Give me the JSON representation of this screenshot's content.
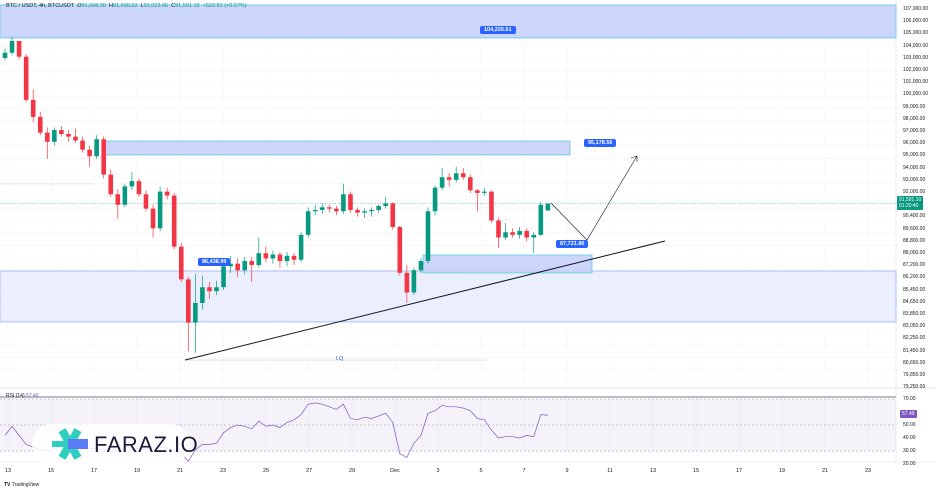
{
  "header": {
    "symbol": "BTC / USDT, 4h, BTCUSDT",
    "open_label": "O",
    "open": "91,068.30",
    "high_label": "H",
    "high": "91,600.53",
    "low_label": "L",
    "low": "91,023.06",
    "close_label": "C",
    "close": "91,591.10",
    "change": "+522.81 (+0.57%)"
  },
  "price_tag": {
    "price": "91,591.10",
    "countdown": "01:20:40"
  },
  "rsi_tag": "57.49",
  "rsi_title": {
    "name": "RSI (14)",
    "value": "57.49"
  },
  "callouts": {
    "top": "104,226.61",
    "mid": "95,178.56",
    "left": "86,438.99",
    "right": "87,721.86"
  },
  "lq_label": "LQ",
  "logo": {
    "text": "FARAZ.IO"
  },
  "footer": {
    "brand": "TradingView"
  },
  "colors": {
    "up": "#089981",
    "down": "#f23645",
    "zone": "#c7d2fb",
    "zone_border": "#5ccbe4",
    "rsi": "#7e57c2",
    "callout": "#2962ff"
  },
  "chart_data": {
    "type": "candlestick",
    "interval": "4h",
    "price_axis_labels": [
      "107,000.00",
      "106,000.00",
      "105,000.00",
      "104,000.00",
      "103,000.00",
      "102,000.00",
      "101,000.00",
      "100,000.00",
      "99,000.00",
      "98,000.00",
      "97,000.00",
      "96,000.00",
      "95,000.00",
      "94,000.00",
      "93,000.00",
      "92,000.00",
      "",
      "90,400.00",
      "89,600.00",
      "88,800.00",
      "88,000.00",
      "87,200.00",
      "86,200.00",
      "85,450.00",
      "84,650.00",
      "83,850.00",
      "83,050.00",
      "82,250.00",
      "81,450.00",
      "80,650.00",
      "79,850.00",
      "79,250.00"
    ],
    "time_axis_labels": [
      "13",
      "15",
      "17",
      "19",
      "21",
      "23",
      "25",
      "27",
      "29",
      "Dec",
      "3",
      "5",
      "7",
      "9",
      "11",
      "13",
      "15",
      "17",
      "19",
      "21",
      "23"
    ],
    "rsi_axis_labels": [
      "70.00",
      "",
      "50.00",
      "40.00",
      "30.00",
      "20.00"
    ],
    "rsi_levels": [
      70,
      50,
      30
    ],
    "candles_ohlc": [
      [
        102700,
        103400,
        102500,
        103100
      ],
      [
        103100,
        104300,
        102900,
        104000
      ],
      [
        104000,
        104000,
        102600,
        102800
      ],
      [
        102800,
        103000,
        99300,
        99500
      ],
      [
        99500,
        100300,
        97800,
        98200
      ],
      [
        98200,
        98600,
        96800,
        97000
      ],
      [
        97000,
        97400,
        95000,
        96300
      ],
      [
        96300,
        97400,
        96000,
        97200
      ],
      [
        97200,
        97500,
        96700,
        96900
      ],
      [
        96900,
        97200,
        96300,
        96700
      ],
      [
        96700,
        97300,
        96200,
        96400
      ],
      [
        96400,
        96700,
        95500,
        95700
      ],
      [
        95700,
        96000,
        94400,
        95200
      ],
      [
        95200,
        96800,
        95000,
        96500
      ],
      [
        96500,
        96700,
        93500,
        93800
      ],
      [
        93800,
        94200,
        92100,
        92300
      ],
      [
        92300,
        92700,
        90400,
        91500
      ],
      [
        91500,
        93100,
        91300,
        92900
      ],
      [
        92900,
        94000,
        92600,
        93300
      ],
      [
        93300,
        93500,
        92100,
        92300
      ],
      [
        92300,
        92600,
        91000,
        91200
      ],
      [
        91200,
        91500,
        89000,
        89700
      ],
      [
        89700,
        92900,
        89500,
        92500
      ],
      [
        92500,
        92800,
        91900,
        92200
      ],
      [
        92200,
        92400,
        88100,
        88300
      ],
      [
        88300,
        88600,
        85600,
        85800
      ],
      [
        85800,
        86000,
        80300,
        82500
      ],
      [
        82500,
        86200,
        80200,
        84000
      ],
      [
        84000,
        86100,
        83500,
        85200
      ],
      [
        85200,
        85600,
        84300,
        84900
      ],
      [
        84900,
        85700,
        84600,
        85200
      ],
      [
        85200,
        87100,
        85000,
        86800
      ],
      [
        86800,
        87600,
        86300,
        87000
      ],
      [
        87000,
        87400,
        86000,
        86500
      ],
      [
        86500,
        87500,
        86200,
        87200
      ],
      [
        87200,
        87500,
        85600,
        86900
      ],
      [
        86900,
        89000,
        86700,
        87800
      ],
      [
        87800,
        88300,
        87100,
        87400
      ],
      [
        87400,
        88000,
        87000,
        87700
      ],
      [
        87700,
        87900,
        86700,
        87200
      ],
      [
        87200,
        87900,
        86800,
        87600
      ],
      [
        87600,
        87800,
        86900,
        87300
      ],
      [
        87300,
        89400,
        87100,
        89200
      ],
      [
        89200,
        91300,
        89000,
        91000
      ],
      [
        91000,
        91500,
        90700,
        91100
      ],
      [
        91100,
        91600,
        90800,
        91300
      ],
      [
        91300,
        91500,
        90900,
        91200
      ],
      [
        91200,
        91400,
        90700,
        91000
      ],
      [
        91000,
        93100,
        90800,
        92300
      ],
      [
        92300,
        92500,
        90900,
        91100
      ],
      [
        91100,
        91300,
        90600,
        90900
      ],
      [
        90900,
        91200,
        90500,
        91000
      ],
      [
        91000,
        91300,
        90600,
        91100
      ],
      [
        91100,
        91500,
        90900,
        91400
      ],
      [
        91400,
        92100,
        91200,
        91600
      ],
      [
        91600,
        91700,
        89600,
        89800
      ],
      [
        89800,
        89900,
        86100,
        86300
      ],
      [
        86300,
        86900,
        84000,
        84800
      ],
      [
        84800,
        86700,
        84600,
        86500
      ],
      [
        86500,
        87400,
        86300,
        87200
      ],
      [
        87200,
        91300,
        87000,
        91000
      ],
      [
        91000,
        93000,
        90700,
        92800
      ],
      [
        92800,
        94300,
        92600,
        93600
      ],
      [
        93600,
        93900,
        92900,
        93400
      ],
      [
        93400,
        94400,
        93200,
        93900
      ],
      [
        93900,
        94300,
        93400,
        93600
      ],
      [
        93600,
        93800,
        92400,
        92600
      ],
      [
        92600,
        92700,
        91000,
        92400
      ],
      [
        92400,
        92800,
        92200,
        92500
      ],
      [
        92500,
        92600,
        90100,
        90300
      ],
      [
        90300,
        90500,
        88200,
        89000
      ],
      [
        89000,
        90100,
        88800,
        89400
      ],
      [
        89400,
        89700,
        89000,
        89200
      ],
      [
        89200,
        89800,
        88900,
        89500
      ],
      [
        89500,
        89700,
        88700,
        89000
      ],
      [
        89000,
        89400,
        87800,
        89200
      ],
      [
        89200,
        91700,
        89100,
        91500
      ],
      [
        91068.3,
        91600.53,
        91023.06,
        91591.1
      ]
    ],
    "rsi": [
      42,
      49,
      42,
      35,
      33,
      31,
      30,
      32,
      34,
      36,
      36,
      34,
      32,
      32,
      31,
      30,
      30,
      31,
      31,
      32,
      32,
      33,
      33,
      32,
      30,
      28,
      22,
      31,
      35,
      35,
      36,
      44,
      48,
      50,
      49,
      47,
      53,
      49,
      50,
      48,
      52,
      54,
      58,
      66,
      67,
      66,
      64,
      62,
      66,
      55,
      54,
      56,
      55,
      57,
      59,
      52,
      28,
      25,
      36,
      42,
      59,
      61,
      65,
      64,
      64,
      63,
      61,
      55,
      54,
      46,
      40,
      41,
      41,
      40,
      42,
      41,
      58,
      57.49
    ],
    "zones": [
      {
        "name": "supply-zone-top",
        "top": 106750,
        "bottom": 104226.61
      },
      {
        "name": "supply-zone-mid",
        "top": 96360,
        "bottom": 95300
      },
      {
        "name": "demand-zone-large",
        "top": 86438.99,
        "bottom": 82550
      },
      {
        "name": "demand-zone-small",
        "top": 87660,
        "bottom": 86290
      }
    ],
    "last_price": 91591.1
  }
}
